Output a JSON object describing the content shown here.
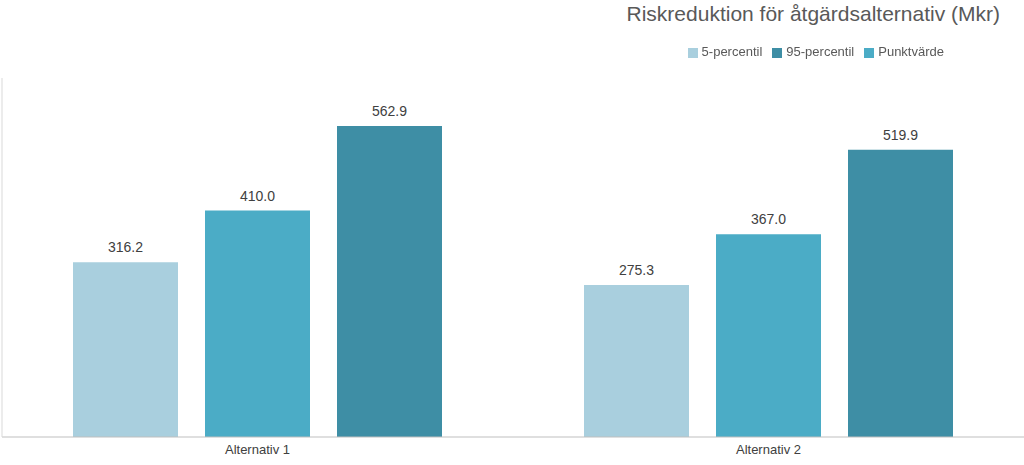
{
  "chart_data": {
    "type": "bar",
    "title": "Riskreduktion för åtgärdsalternativ (Mkr)",
    "categories": [
      "Alternativ 1",
      "Alternativ 2"
    ],
    "series": [
      {
        "name": "5-percentil",
        "color": "#a9cfde",
        "values": [
          316.2,
          275.3
        ],
        "value_labels": [
          "316.2",
          "275.3"
        ]
      },
      {
        "name": "Punktvärde",
        "color": "#4bacc6",
        "values": [
          410.0,
          367.0
        ],
        "value_labels": [
          "410.0",
          "367.0"
        ]
      },
      {
        "name": "95-percentil",
        "color": "#3e8ea5",
        "values": [
          562.9,
          519.9
        ],
        "value_labels": [
          "562.9",
          "519.9"
        ]
      }
    ],
    "ylim": [
      0,
      650
    ],
    "grid": false,
    "legend": "top",
    "data_labels": true,
    "tick_labels": "x"
  }
}
